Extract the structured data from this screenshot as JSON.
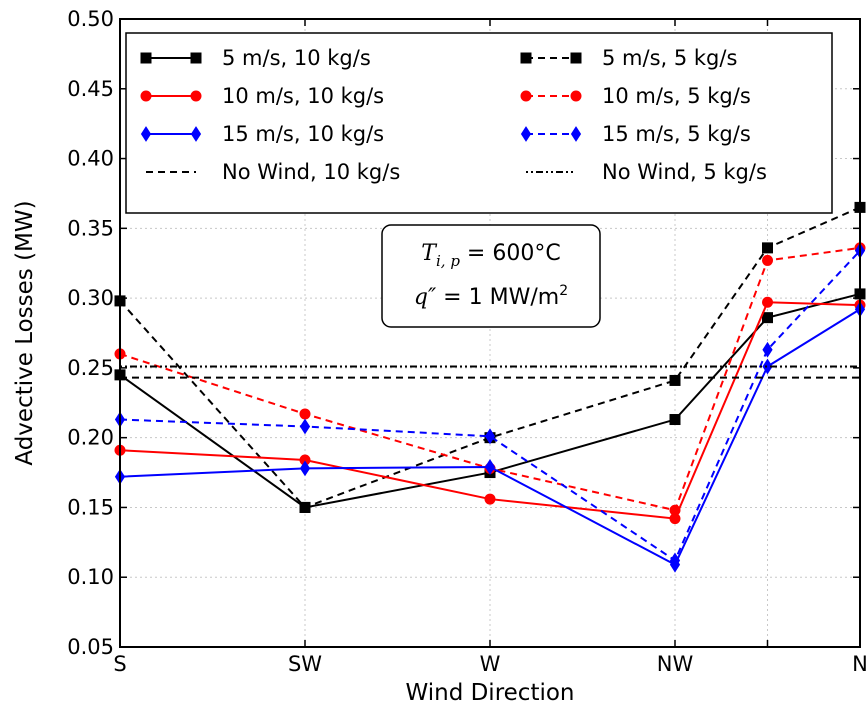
{
  "chart_data": {
    "type": "line",
    "title": "",
    "xlabel": "Wind Direction",
    "ylabel": "Advective Losses (MW)",
    "categories": [
      "S",
      "SW",
      "W",
      "NW",
      "",
      "N"
    ],
    "x_positions": [
      0,
      1,
      2,
      3,
      3.5,
      4
    ],
    "xlim": [
      0,
      4
    ],
    "ylim": [
      0.05,
      0.5
    ],
    "yticks": [
      "0.05",
      "0.10",
      "0.15",
      "0.20",
      "0.25",
      "0.30",
      "0.35",
      "0.40",
      "0.45",
      "0.50"
    ],
    "grid": true,
    "legend_position": "top",
    "series": [
      {
        "name": "5 m/s, 10 kg/s",
        "color": "#000000",
        "style": "solid",
        "marker": "square",
        "values": [
          0.245,
          0.15,
          0.175,
          0.213,
          0.286,
          0.303
        ]
      },
      {
        "name": "5 m/s, 5 kg/s",
        "color": "#000000",
        "style": "dashed",
        "marker": "square",
        "values": [
          0.298,
          0.15,
          0.2,
          0.241,
          0.336,
          0.365
        ]
      },
      {
        "name": "10 m/s, 10 kg/s",
        "color": "#ff0000",
        "style": "solid",
        "marker": "circle",
        "values": [
          0.191,
          0.184,
          0.156,
          0.142,
          0.297,
          0.295
        ]
      },
      {
        "name": "10 m/s, 5 kg/s",
        "color": "#ff0000",
        "style": "dashed",
        "marker": "circle",
        "values": [
          0.26,
          0.217,
          0.178,
          0.148,
          0.327,
          0.336
        ]
      },
      {
        "name": "15 m/s, 10 kg/s",
        "color": "#0000ff",
        "style": "solid",
        "marker": "diamond",
        "values": [
          0.172,
          0.178,
          0.179,
          0.109,
          0.251,
          0.292
        ]
      },
      {
        "name": "15 m/s, 5 kg/s",
        "color": "#0000ff",
        "style": "dashed",
        "marker": "diamond",
        "values": [
          0.213,
          0.208,
          0.201,
          0.112,
          0.263,
          0.334
        ]
      },
      {
        "name": "No Wind, 10 kg/s",
        "color": "#000000",
        "style": "dashed",
        "marker": "none",
        "values": [
          0.243,
          0.243,
          0.243,
          0.243,
          0.243,
          0.243
        ]
      },
      {
        "name": "No Wind, 5 kg/s",
        "color": "#000000",
        "style": "dashdot",
        "marker": "none",
        "values": [
          0.251,
          0.251,
          0.251,
          0.251,
          0.251,
          0.251
        ]
      }
    ],
    "annotation": {
      "line1_lhs": "T",
      "line1_sub": "i, p",
      "line1_rhs": " = 600°C",
      "line2_lhs": "q″",
      "line2_rhs": " = 1 MW/m",
      "line2_sup": "2"
    }
  }
}
